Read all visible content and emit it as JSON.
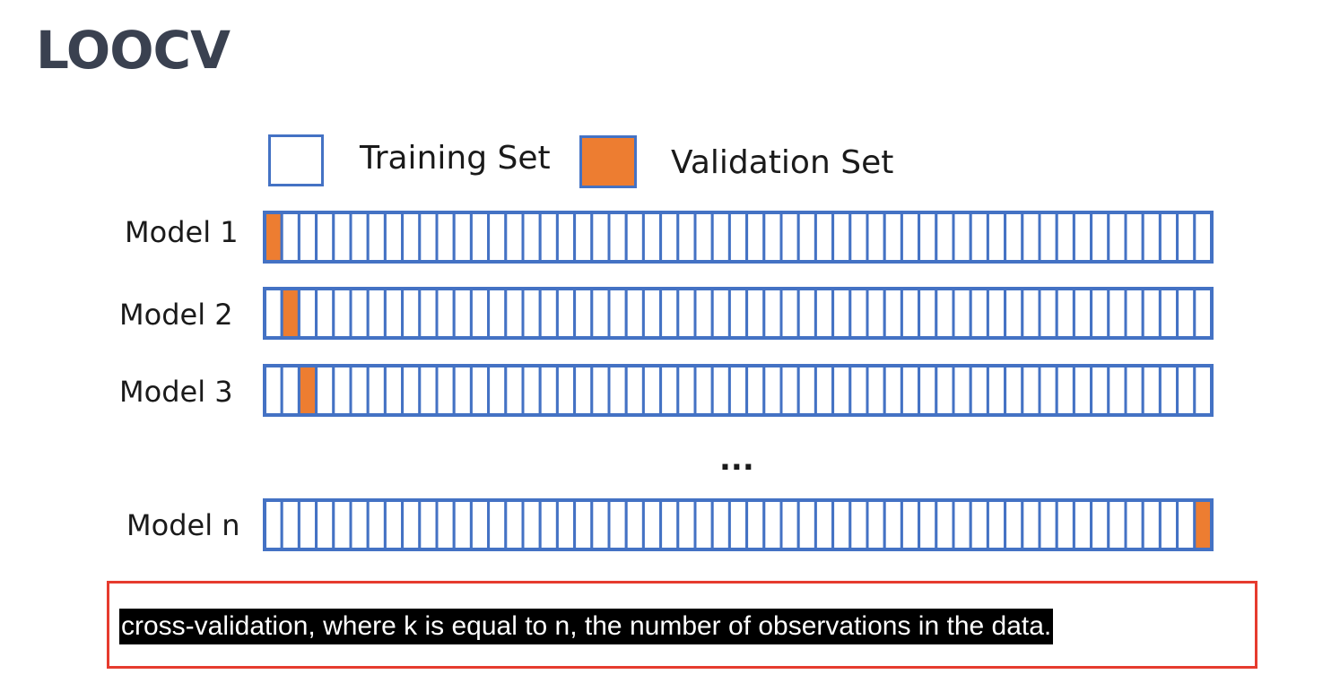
{
  "title": "LOOCV",
  "legend": {
    "training_label": "Training Set",
    "validation_label": "Validation Set"
  },
  "colors": {
    "training_fill": "#ffffff",
    "validation_fill": "#ed7d31",
    "cell_border": "#4472c4",
    "title_color": "#3a4150",
    "caption_frame": "#e63b2e"
  },
  "diagram": {
    "cells_per_row": 55,
    "ellipsis": "...",
    "rows": [
      {
        "label": "Model 1",
        "validation_index": 0
      },
      {
        "label": "Model 2",
        "validation_index": 1
      },
      {
        "label": "Model 3",
        "validation_index": 2
      },
      {
        "label": "Model n",
        "validation_index": 54
      }
    ]
  },
  "caption": "cross-validation, where k is equal to n, the number of observations in the data."
}
